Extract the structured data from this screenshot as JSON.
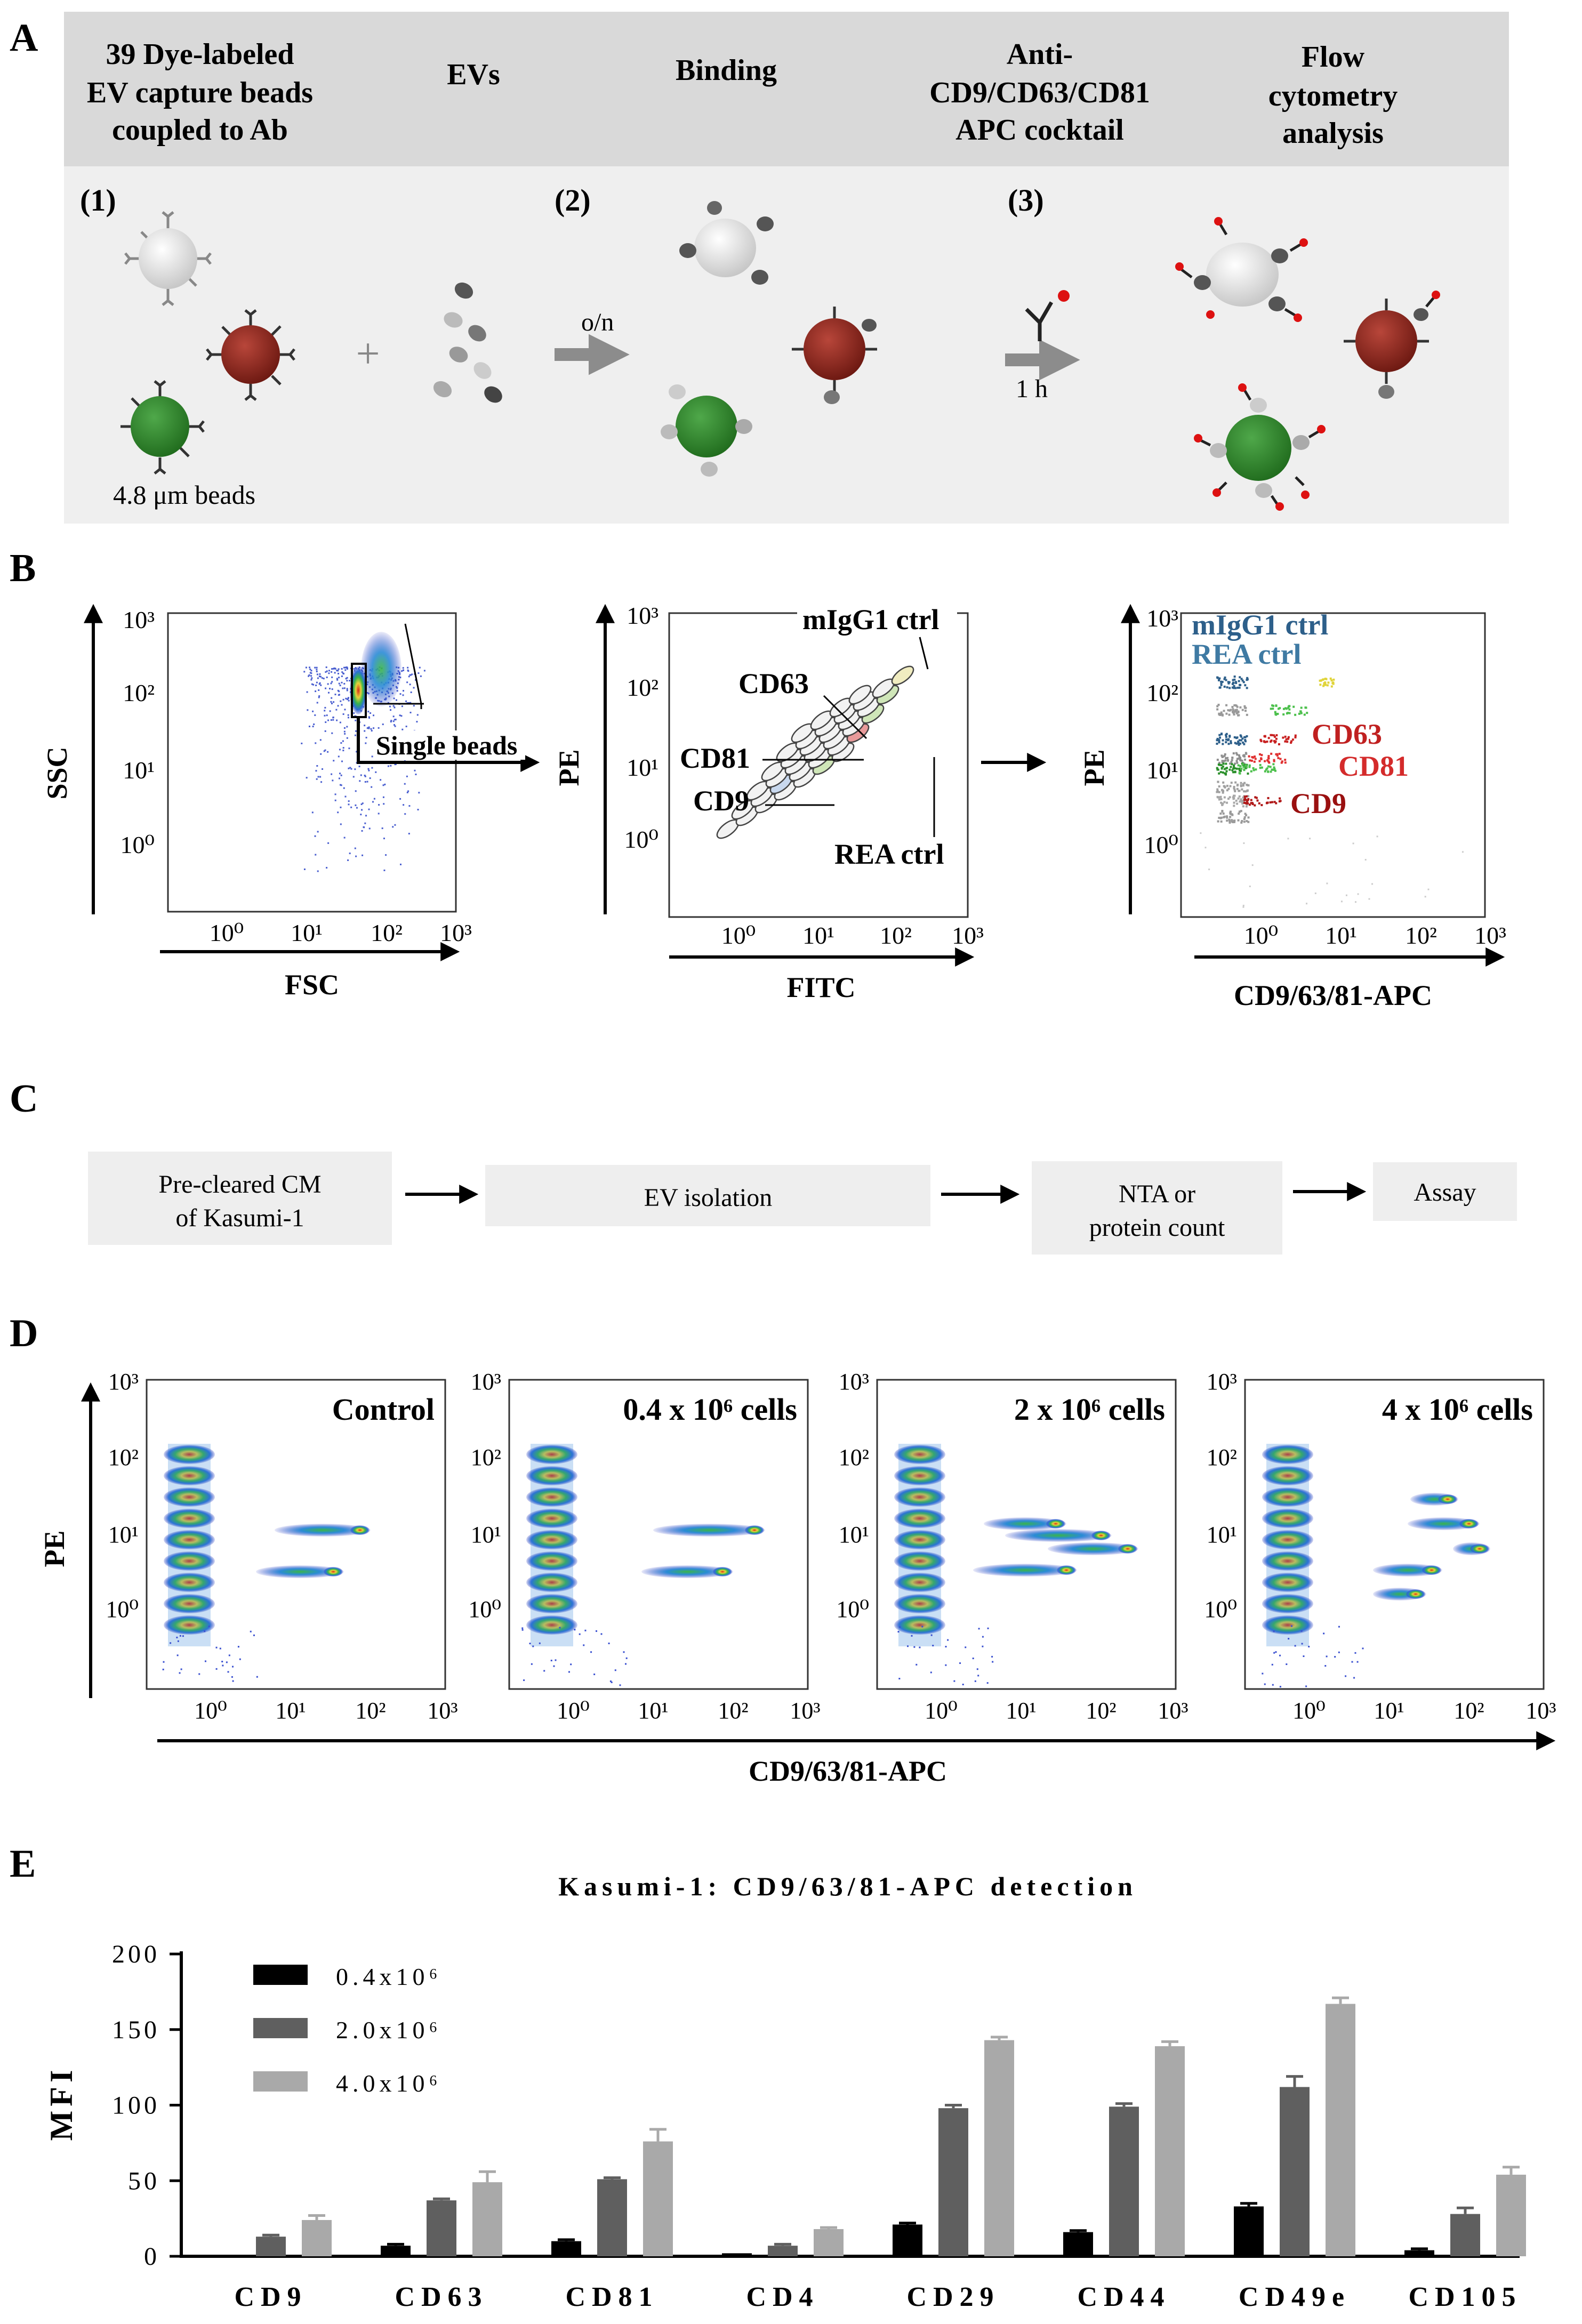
{
  "panels": {
    "A": "A",
    "B": "B",
    "C": "C",
    "D": "D",
    "E": "E"
  },
  "panel_a": {
    "headers": [
      "39 Dye-labeled",
      "EV capture beads",
      "coupled to Ab",
      "EVs",
      "Binding",
      "Anti-",
      "CD9/CD63/CD81",
      "APC cocktail",
      "Flow",
      "cytometry",
      "analysis"
    ],
    "steps": [
      "(1)",
      "(2)",
      "(3)"
    ],
    "plus": "+",
    "arrow1_label": "o/n",
    "arrow2_label": "1 h",
    "bead_size_label": "4.8 μm beads"
  },
  "panel_b": {
    "plot1": {
      "ylabel": "SSC",
      "xlabel": "FSC",
      "gate_label": "Single beads",
      "yticks": [
        "10³",
        "10²",
        "10¹",
        "10⁰"
      ],
      "xticks": [
        "10⁰",
        "10¹",
        "10²",
        "10³"
      ]
    },
    "plot2": {
      "ylabel": "PE",
      "xlabel": "FITC",
      "labels": [
        "mIgG1 ctrl",
        "CD63",
        "CD81",
        "CD9",
        "REA ctrl"
      ],
      "yticks": [
        "10³",
        "10²",
        "10¹",
        "10⁰"
      ],
      "xticks": [
        "10⁰",
        "10¹",
        "10²",
        "10³"
      ]
    },
    "plot3": {
      "ylabel": "PE",
      "xlabel": "CD9/63/81-APC",
      "labels": [
        "mIgG1 ctrl",
        "REA ctrl",
        "CD63",
        "CD81",
        "CD9"
      ],
      "yticks": [
        "10³",
        "10²",
        "10¹",
        "10⁰"
      ],
      "xticks": [
        "10⁰",
        "10¹",
        "10²",
        "10³"
      ]
    }
  },
  "panel_c": {
    "steps": [
      "Pre-cleared CM",
      "of Kasumi-1",
      "EV isolation",
      "NTA or",
      "protein count",
      "Assay"
    ]
  },
  "panel_d": {
    "ylabel": "PE",
    "xlabel": "CD9/63/81-APC",
    "plot_titles": [
      "Control",
      "0.4 x 10⁶ cells",
      "2 x 10⁶ cells",
      "4 x 10⁶ cells"
    ],
    "yticks": [
      "10³",
      "10²",
      "10¹",
      "10⁰"
    ],
    "xticks": [
      "10⁰",
      "10¹",
      "10²",
      "10³"
    ]
  },
  "chart_data": {
    "type": "bar",
    "title": "Kasumi-1: CD9/63/81-APC detection",
    "ylabel": "MFI",
    "xlabel": "",
    "ylim": [
      0,
      200
    ],
    "yticks": [
      0,
      50,
      100,
      150,
      200
    ],
    "categories": [
      "CD9",
      "CD63",
      "CD81",
      "CD4",
      "CD29",
      "CD44",
      "CD49e",
      "CD105"
    ],
    "series": [
      {
        "name": "0.4x10⁶",
        "color": "#000000",
        "values": [
          1,
          7,
          10,
          2,
          21,
          16,
          33,
          4
        ],
        "errors": [
          0,
          1,
          1,
          0,
          1,
          1,
          2,
          1
        ]
      },
      {
        "name": "2.0x10⁶",
        "color": "#5f5f5f",
        "values": [
          13,
          37,
          51,
          7,
          98,
          99,
          112,
          28
        ],
        "errors": [
          1,
          1,
          1,
          1,
          2,
          2,
          7,
          4
        ]
      },
      {
        "name": "4.0x10⁶",
        "color": "#a9a9a9",
        "values": [
          24,
          49,
          76,
          18,
          143,
          139,
          167,
          54
        ],
        "errors": [
          3,
          7,
          8,
          1,
          2,
          3,
          4,
          5
        ]
      }
    ],
    "legend_position": "top-left"
  }
}
